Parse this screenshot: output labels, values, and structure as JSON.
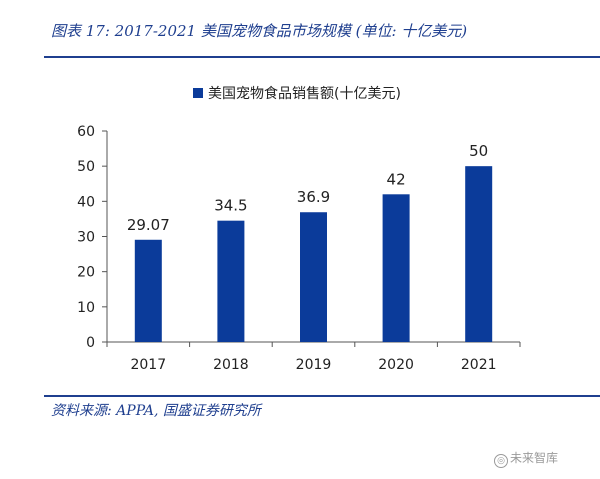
{
  "header": {
    "figure_title": "图表 17:  2017-2021 美国宠物食品市场规模 (单位: 十亿美元)"
  },
  "footer": {
    "source": "资料来源: APPA, 国盛证券研究所",
    "watermark": "未来智库"
  },
  "colors": {
    "bar": "#0b3b9a",
    "accent": "#1f3f8f",
    "axis": "#555555"
  },
  "chart_data": {
    "type": "bar",
    "categories": [
      "2017",
      "2018",
      "2019",
      "2020",
      "2021"
    ],
    "series": [
      {
        "name": "美国宠物食品销售额(十亿美元)",
        "values": [
          29.07,
          34.5,
          36.9,
          42,
          50
        ],
        "labels": [
          "29.07",
          "34.5",
          "36.9",
          "42",
          "50"
        ]
      }
    ],
    "yticks": [
      0,
      10,
      20,
      30,
      40,
      50,
      60
    ],
    "ylim": [
      0,
      60
    ],
    "grid": false,
    "legend_position": "top-center",
    "title": "",
    "xlabel": "",
    "ylabel": ""
  }
}
